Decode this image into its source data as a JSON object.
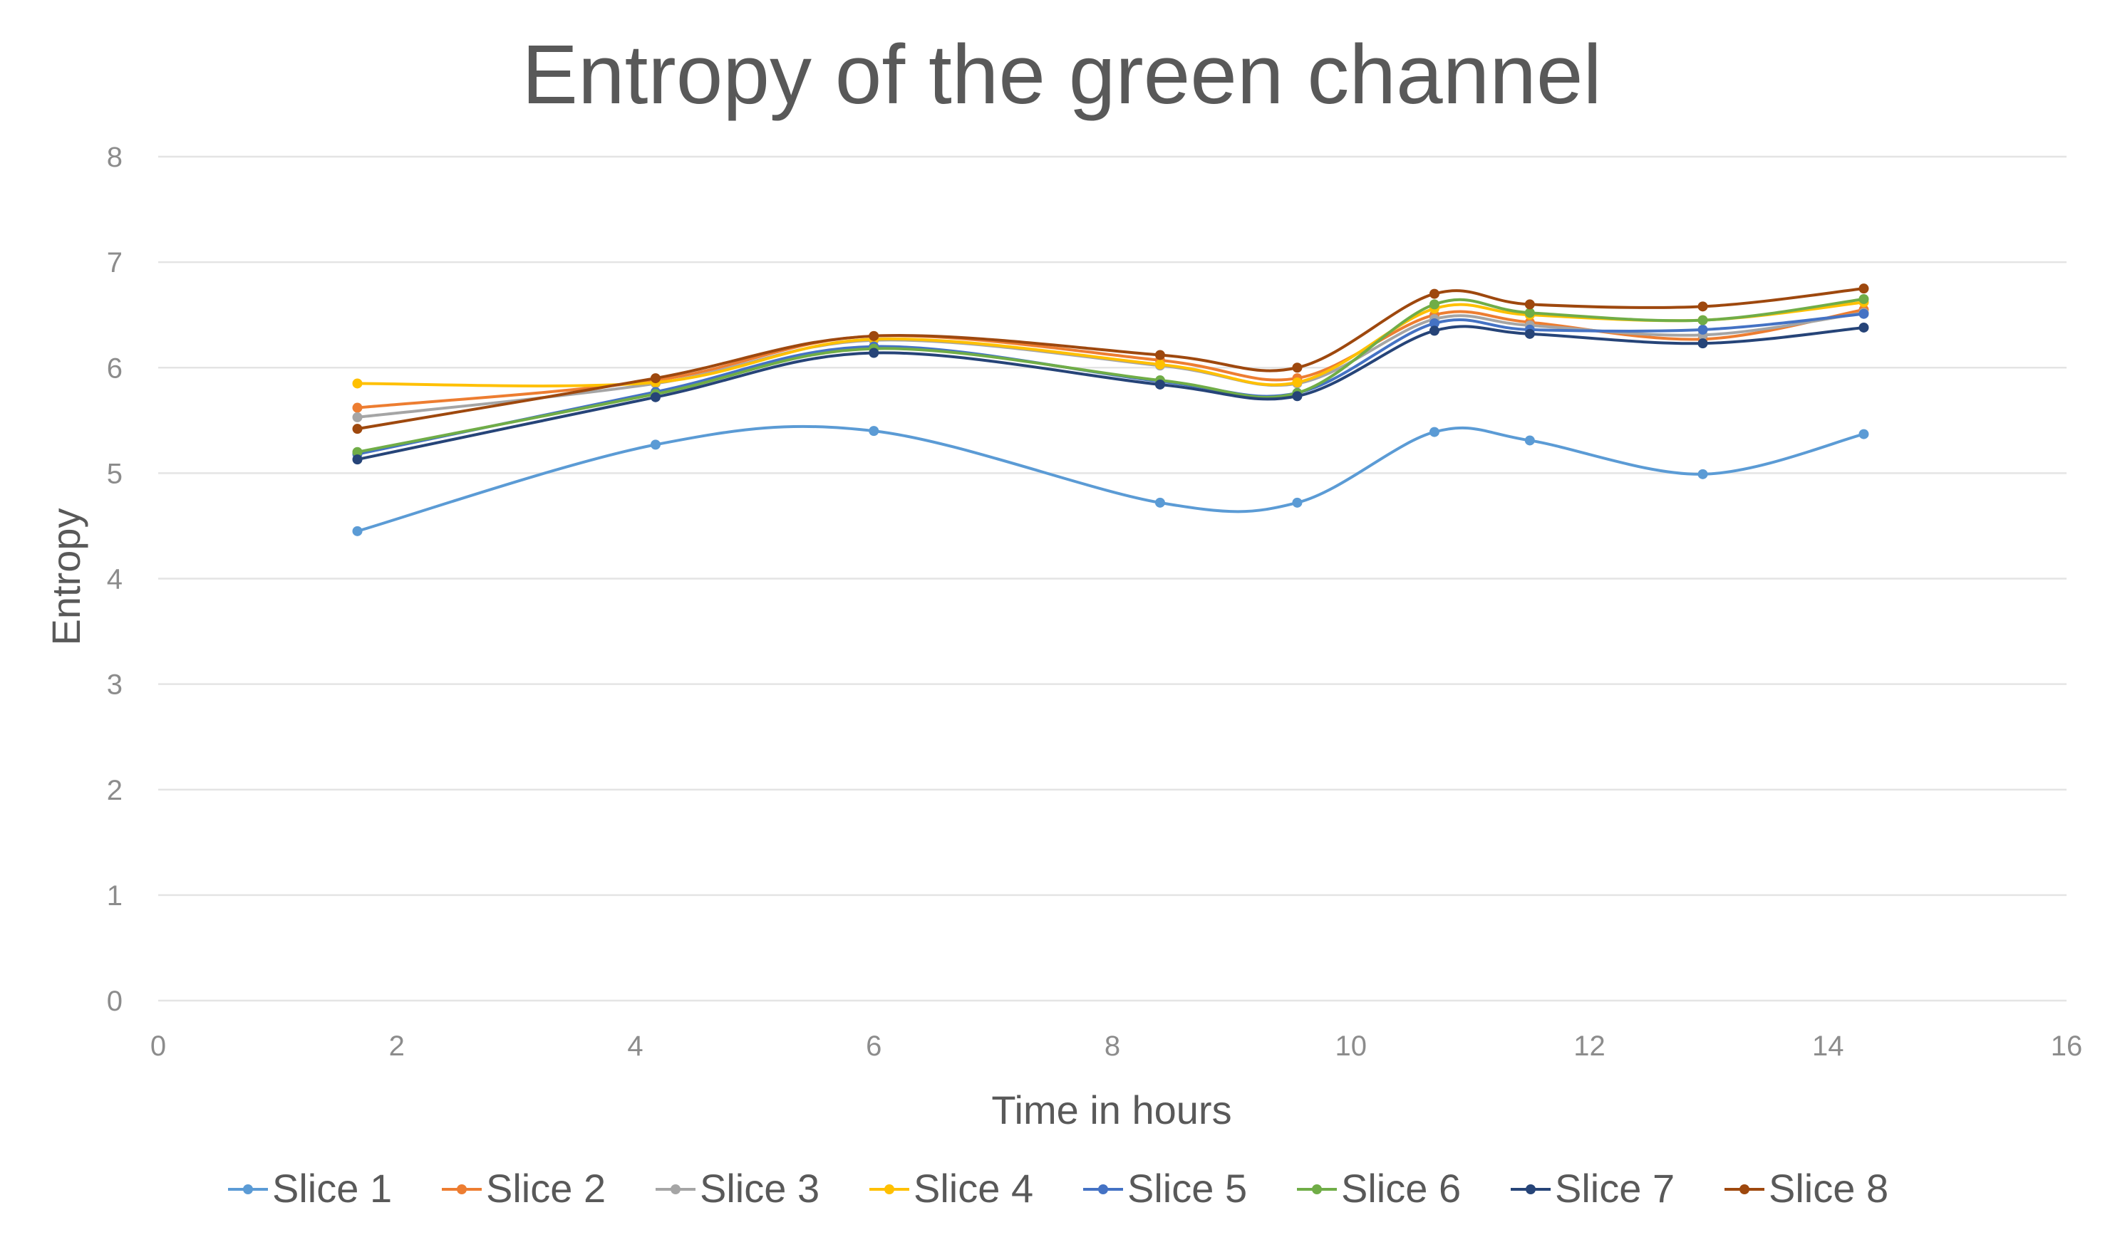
{
  "chart_data": {
    "type": "line",
    "title": "Entropy of the green channel",
    "xlabel": "Time in hours",
    "ylabel": "Entropy",
    "xlim": [
      0,
      16
    ],
    "ylim": [
      0,
      8
    ],
    "xticks": [
      0,
      2,
      4,
      6,
      8,
      10,
      12,
      14,
      16
    ],
    "yticks": [
      0,
      1,
      2,
      3,
      4,
      5,
      6,
      7,
      8
    ],
    "grid": "horizontal",
    "legend_position": "bottom",
    "smoothed": true,
    "x": [
      1.67,
      4.17,
      6.0,
      8.4,
      9.55,
      10.7,
      11.5,
      12.95,
      14.3
    ],
    "series": [
      {
        "name": "Slice 1",
        "color": "#5b9bd5",
        "values": [
          4.45,
          5.27,
          5.4,
          4.72,
          4.72,
          5.39,
          5.31,
          4.99,
          5.37
        ]
      },
      {
        "name": "Slice 2",
        "color": "#ed7d31",
        "values": [
          5.62,
          5.88,
          6.3,
          6.07,
          5.9,
          6.5,
          6.43,
          6.27,
          6.55
        ]
      },
      {
        "name": "Slice 3",
        "color": "#a5a5a5",
        "values": [
          5.53,
          5.85,
          6.26,
          6.02,
          5.85,
          6.46,
          6.4,
          6.31,
          6.52
        ]
      },
      {
        "name": "Slice 4",
        "color": "#ffc000",
        "values": [
          5.85,
          5.86,
          6.27,
          6.03,
          5.86,
          6.56,
          6.5,
          6.45,
          6.62
        ]
      },
      {
        "name": "Slice 5",
        "color": "#4472c4",
        "values": [
          5.18,
          5.77,
          6.2,
          5.87,
          5.76,
          6.42,
          6.36,
          6.36,
          6.51
        ]
      },
      {
        "name": "Slice 6",
        "color": "#70ad47",
        "values": [
          5.2,
          5.75,
          6.18,
          5.88,
          5.76,
          6.6,
          6.52,
          6.45,
          6.65
        ]
      },
      {
        "name": "Slice 7",
        "color": "#264478",
        "values": [
          5.13,
          5.72,
          6.14,
          5.84,
          5.73,
          6.35,
          6.32,
          6.23,
          6.38
        ]
      },
      {
        "name": "Slice 8",
        "color": "#9e480e",
        "values": [
          5.42,
          5.9,
          6.3,
          6.12,
          6.0,
          6.7,
          6.6,
          6.58,
          6.75
        ]
      }
    ]
  }
}
